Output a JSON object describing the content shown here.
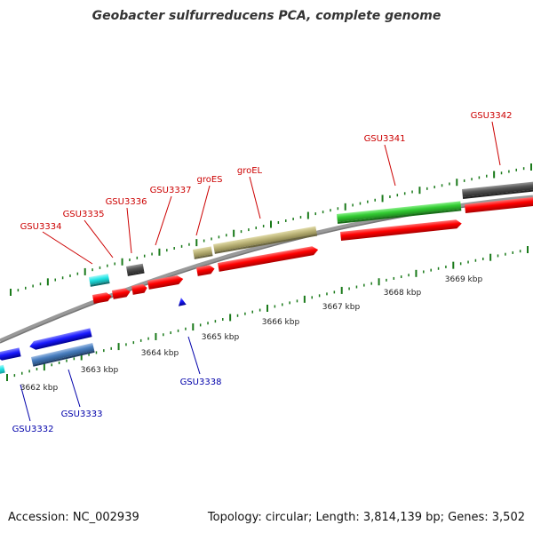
{
  "title": "Geobacter sulfurreducens PCA, complete genome",
  "footer": {
    "accession_text": "Accession: NC_002939",
    "summary_text": "Topology: circular; Length: 3,814,139 bp; Genes: 3,502"
  },
  "scale": {
    "unit": "kbp",
    "labels": [
      "3662 kbp",
      "3663 kbp",
      "3664 kbp",
      "3665 kbp",
      "3666 kbp",
      "3667 kbp",
      "3668 kbp",
      "3669 kbp"
    ]
  },
  "top_labels": [
    "GSU3334",
    "GSU3335",
    "GSU3336",
    "GSU3337",
    "groES",
    "groEL",
    "GSU3341",
    "GSU3342"
  ],
  "bottom_labels": [
    "GSU3332",
    "GSU3333",
    "GSU3338"
  ],
  "colors": {
    "top_label": "#cc0000",
    "bottom_label": "#0000aa",
    "red": "#ff0000",
    "green": "#33cc33",
    "olive": "#bdb57a",
    "cyan": "#22e5e5",
    "gray": "#555555",
    "blue": "#1a1aff",
    "steelblue": "#4a7fc0",
    "tick": "#1a7a1a",
    "backbone": "#999999"
  }
}
